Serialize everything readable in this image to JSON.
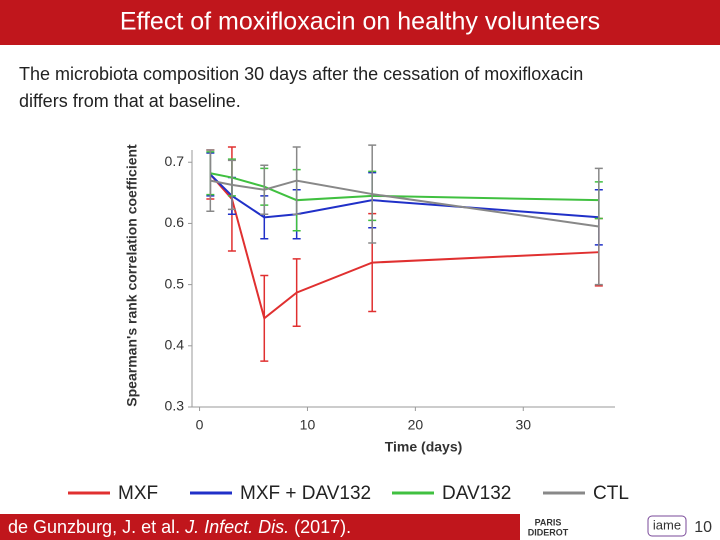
{
  "header": {
    "title": "Effect of moxifloxacin on healthy volunteers"
  },
  "subtitle": [
    "The microbiota composition 30 days after the cessation of moxifloxacin",
    "differs from that at baseline."
  ],
  "chart_data": {
    "type": "line",
    "x": [
      1,
      3,
      6,
      9,
      16,
      37
    ],
    "xlabel": "Time (days)",
    "ylabel": "Spearman's rank correlation coefficient",
    "xlim": [
      -0.7,
      38.5
    ],
    "xticks": [
      0,
      10,
      20,
      30
    ],
    "ylim": [
      0.3,
      0.72
    ],
    "yticks": [
      0.3,
      0.4,
      0.5,
      0.6,
      0.7
    ],
    "series": [
      {
        "name": "MXF",
        "color": "#e03030",
        "values": [
          0.68,
          0.64,
          0.445,
          0.487,
          0.536,
          0.553
        ],
        "errors": [
          0.04,
          0.085,
          0.07,
          0.055,
          0.08,
          0.055
        ]
      },
      {
        "name": "MXF + DAV132",
        "color": "#2030c8",
        "values": [
          0.68,
          0.645,
          0.61,
          0.615,
          0.638,
          0.61
        ],
        "errors": [
          0.035,
          0.03,
          0.035,
          0.04,
          0.045,
          0.045
        ]
      },
      {
        "name": "DAV132",
        "color": "#40c040",
        "values": [
          0.682,
          0.675,
          0.66,
          0.638,
          0.645,
          0.638
        ],
        "errors": [
          0.035,
          0.03,
          0.03,
          0.05,
          0.04,
          0.03
        ]
      },
      {
        "name": "CTL",
        "color": "#888888",
        "values": [
          0.67,
          0.663,
          0.655,
          0.67,
          0.648,
          0.595
        ],
        "errors": [
          0.05,
          0.04,
          0.04,
          0.055,
          0.08,
          0.095
        ]
      }
    ]
  },
  "footer": {
    "citation": [
      "de Gunzburg, J. et al. ",
      "J. Infect. Dis.",
      " (2017)."
    ],
    "logos": [
      "PARIS",
      "DIDEROT",
      "iame"
    ],
    "page": "10"
  }
}
